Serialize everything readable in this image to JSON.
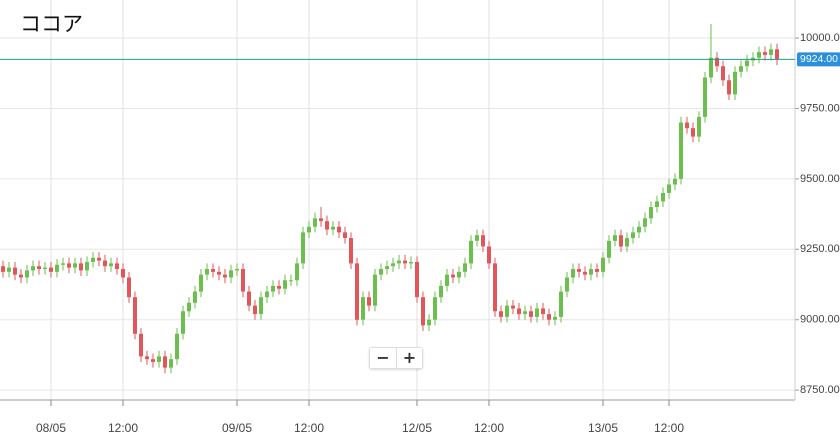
{
  "chart_data": {
    "type": "candlestick",
    "title": "ココア",
    "categories": [
      null,
      null,
      null,
      null,
      null,
      null,
      null,
      null,
      "08/05",
      null,
      null,
      null,
      null,
      null,
      null,
      null,
      null,
      null,
      null,
      null,
      "12:00",
      null,
      null,
      null,
      null,
      null,
      null,
      null,
      null,
      null,
      null,
      null,
      null,
      null,
      null,
      null,
      null,
      null,
      null,
      "09/05",
      null,
      null,
      null,
      null,
      null,
      null,
      null,
      null,
      null,
      null,
      null,
      "12:00",
      null,
      null,
      null,
      null,
      null,
      null,
      null,
      null,
      null,
      null,
      null,
      null,
      null,
      null,
      null,
      null,
      null,
      "12/05",
      null,
      null,
      null,
      null,
      null,
      null,
      null,
      null,
      null,
      null,
      null,
      "12:00",
      null,
      null,
      null,
      null,
      null,
      null,
      null,
      null,
      null,
      null,
      null,
      null,
      null,
      null,
      null,
      null,
      null,
      null,
      "13/05",
      null,
      null,
      null,
      null,
      null,
      null,
      null,
      null,
      null,
      null,
      "12:00",
      null,
      null,
      null,
      null,
      null,
      null,
      null,
      null,
      null,
      null,
      null,
      null,
      null,
      null,
      null,
      null,
      null,
      null
    ],
    "open": [
      9190,
      9170,
      9185,
      9160,
      9150,
      9175,
      9190,
      9180,
      9185,
      9170,
      9195,
      9200,
      9185,
      9200,
      9175,
      9205,
      9220,
      9210,
      9190,
      9200,
      9180,
      9150,
      9080,
      8950,
      8870,
      8860,
      8850,
      8870,
      8830,
      8860,
      8950,
      9030,
      9060,
      9100,
      9160,
      9180,
      9170,
      9160,
      9150,
      9175,
      9180,
      9100,
      9050,
      9020,
      9080,
      9100,
      9120,
      9110,
      9140,
      9140,
      9200,
      9310,
      9330,
      9360,
      9350,
      9320,
      9330,
      9310,
      9290,
      9200,
      9000,
      9080,
      9050,
      9160,
      9180,
      9190,
      9200,
      9210,
      9200,
      9205,
      9080,
      8980,
      9000,
      9080,
      9120,
      9160,
      9150,
      9170,
      9200,
      9280,
      9300,
      9260,
      9200,
      9030,
      9010,
      9050,
      9040,
      9020,
      9030,
      9010,
      9040,
      9020,
      9000,
      9010,
      9100,
      9150,
      9180,
      9170,
      9160,
      9180,
      9170,
      9220,
      9280,
      9300,
      9260,
      9290,
      9310,
      9330,
      9360,
      9400,
      9420,
      9450,
      9480,
      9500,
      9700,
      9680,
      9650,
      9720,
      9860,
      9930,
      9900,
      9850,
      9800,
      9880,
      9900,
      9920,
      9930,
      9950,
      9940,
      9960
    ],
    "high": [
      9210,
      9205,
      9205,
      9180,
      9195,
      9210,
      9210,
      9205,
      9205,
      9215,
      9220,
      9220,
      9220,
      9220,
      9225,
      9240,
      9240,
      9230,
      9220,
      9220,
      9200,
      9170,
      9100,
      8970,
      8890,
      8880,
      8890,
      8890,
      8880,
      8970,
      9050,
      9080,
      9120,
      9180,
      9200,
      9200,
      9190,
      9180,
      9195,
      9200,
      9200,
      9120,
      9070,
      9100,
      9120,
      9140,
      9140,
      9160,
      9160,
      9220,
      9330,
      9350,
      9380,
      9400,
      9370,
      9350,
      9350,
      9330,
      9310,
      9220,
      9100,
      9100,
      9180,
      9200,
      9210,
      9220,
      9230,
      9230,
      9225,
      9225,
      9100,
      9020,
      9100,
      9140,
      9180,
      9180,
      9190,
      9220,
      9300,
      9320,
      9320,
      9280,
      9220,
      9050,
      9070,
      9070,
      9060,
      9050,
      9050,
      9060,
      9060,
      9040,
      9030,
      9120,
      9170,
      9200,
      9200,
      9190,
      9200,
      9200,
      9240,
      9300,
      9320,
      9320,
      9310,
      9330,
      9350,
      9380,
      9420,
      9440,
      9470,
      9500,
      9520,
      9720,
      9720,
      9700,
      9740,
      9880,
      10050,
      9950,
      9920,
      9870,
      9900,
      9920,
      9940,
      9950,
      9970,
      9970,
      9980,
      9980
    ],
    "low": [
      9150,
      9150,
      9140,
      9130,
      9130,
      9155,
      9160,
      9160,
      9150,
      9150,
      9175,
      9165,
      9165,
      9155,
      9155,
      9185,
      9190,
      9170,
      9170,
      9160,
      9130,
      9060,
      8930,
      8850,
      8840,
      8830,
      8830,
      8810,
      8810,
      8840,
      8930,
      9010,
      9040,
      9080,
      9140,
      9150,
      9140,
      9130,
      9130,
      9155,
      9080,
      9030,
      9000,
      9000,
      9060,
      9080,
      9090,
      9090,
      9120,
      9120,
      9180,
      9290,
      9310,
      9330,
      9300,
      9300,
      9290,
      9270,
      9180,
      8980,
      8980,
      9030,
      9030,
      9140,
      9160,
      9170,
      9180,
      9180,
      9180,
      9060,
      8960,
      8960,
      8980,
      9060,
      9100,
      9130,
      9130,
      9150,
      9180,
      9260,
      9240,
      9180,
      9010,
      8990,
      8990,
      9020,
      9000,
      9000,
      8990,
      8990,
      9000,
      8980,
      8980,
      8990,
      9080,
      9130,
      9150,
      9140,
      9140,
      9150,
      9150,
      9200,
      9260,
      9240,
      9240,
      9270,
      9290,
      9310,
      9340,
      9380,
      9400,
      9430,
      9460,
      9480,
      9660,
      9630,
      9630,
      9700,
      9840,
      9880,
      9830,
      9780,
      9780,
      9860,
      9880,
      9900,
      9910,
      9920,
      9920,
      9904
    ],
    "close": [
      9170,
      9185,
      9160,
      9150,
      9175,
      9190,
      9180,
      9185,
      9170,
      9195,
      9200,
      9185,
      9200,
      9175,
      9205,
      9220,
      9210,
      9190,
      9200,
      9180,
      9150,
      9080,
      8950,
      8870,
      8860,
      8850,
      8870,
      8830,
      8860,
      8950,
      9030,
      9060,
      9100,
      9160,
      9180,
      9170,
      9160,
      9150,
      9175,
      9180,
      9100,
      9050,
      9020,
      9080,
      9100,
      9120,
      9110,
      9140,
      9140,
      9200,
      9310,
      9330,
      9360,
      9350,
      9320,
      9330,
      9310,
      9290,
      9200,
      9000,
      9080,
      9050,
      9160,
      9180,
      9190,
      9200,
      9210,
      9200,
      9205,
      9080,
      8980,
      9000,
      9080,
      9120,
      9160,
      9150,
      9170,
      9200,
      9280,
      9300,
      9260,
      9200,
      9030,
      9010,
      9050,
      9040,
      9020,
      9030,
      9010,
      9040,
      9020,
      9000,
      9010,
      9100,
      9150,
      9180,
      9170,
      9160,
      9180,
      9170,
      9220,
      9280,
      9300,
      9260,
      9290,
      9310,
      9330,
      9360,
      9400,
      9420,
      9450,
      9480,
      9500,
      9700,
      9680,
      9650,
      9720,
      9860,
      9930,
      9900,
      9850,
      9800,
      9880,
      9900,
      9920,
      9930,
      9950,
      9940,
      9960,
      9924
    ],
    "up_color": "#6cbf4e",
    "down_color": "#e0575b",
    "ylim": [
      8715,
      10135
    ],
    "yticks": [
      {
        "value": 8750,
        "label": "8750.00"
      },
      {
        "value": 9000,
        "label": "9000.00"
      },
      {
        "value": 9250,
        "label": "9250.00"
      },
      {
        "value": 9500,
        "label": "9500.00"
      },
      {
        "value": 9750,
        "label": "9750.00"
      },
      {
        "value": 10000,
        "label": "10000.00"
      }
    ],
    "grid": true,
    "current_price": {
      "value": 9924,
      "label": "9924.00",
      "line_color": "#1c9d8c",
      "label_color": "#2a8fdc"
    }
  },
  "zoom_controls": {
    "zoom_out": "−",
    "zoom_in": "+"
  }
}
